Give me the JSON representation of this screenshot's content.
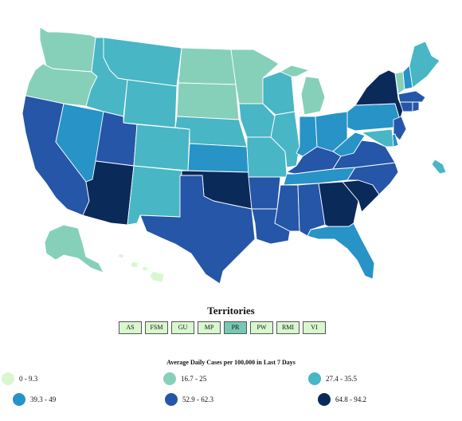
{
  "territories": {
    "title": "Territories",
    "buttons": [
      {
        "code": "AS",
        "selected": false
      },
      {
        "code": "FSM",
        "selected": false
      },
      {
        "code": "GU",
        "selected": false
      },
      {
        "code": "MP",
        "selected": false
      },
      {
        "code": "PR",
        "selected": true
      },
      {
        "code": "PW",
        "selected": false
      },
      {
        "code": "RMI",
        "selected": false
      },
      {
        "code": "VI",
        "selected": false
      }
    ]
  },
  "legend": {
    "title": "Average Daily Cases per 100,000 in Last 7 Days",
    "bins": [
      {
        "label": "0 - 9.3",
        "color": "#d8f7cf"
      },
      {
        "label": "16.7 - 25",
        "color": "#86d0b9"
      },
      {
        "label": "27.4 - 35.5",
        "color": "#48b6c5"
      },
      {
        "label": "39.3 - 49",
        "color": "#2793c6"
      },
      {
        "label": "52.9 - 62.3",
        "color": "#2556a7"
      },
      {
        "label": "64.8 - 94.2",
        "color": "#0a2a5a"
      }
    ]
  },
  "map": {
    "states": [
      {
        "id": "WA",
        "bin": 1
      },
      {
        "id": "OR",
        "bin": 1
      },
      {
        "id": "CA",
        "bin": 4
      },
      {
        "id": "NV",
        "bin": 3
      },
      {
        "id": "ID",
        "bin": 2
      },
      {
        "id": "MT",
        "bin": 2
      },
      {
        "id": "WY",
        "bin": 2
      },
      {
        "id": "UT",
        "bin": 4
      },
      {
        "id": "AZ",
        "bin": 5
      },
      {
        "id": "CO",
        "bin": 2
      },
      {
        "id": "NM",
        "bin": 2
      },
      {
        "id": "ND",
        "bin": 1
      },
      {
        "id": "SD",
        "bin": 1
      },
      {
        "id": "NE",
        "bin": 2
      },
      {
        "id": "KS",
        "bin": 3
      },
      {
        "id": "OK",
        "bin": 5
      },
      {
        "id": "TX",
        "bin": 4
      },
      {
        "id": "MN",
        "bin": 1
      },
      {
        "id": "IA",
        "bin": 2
      },
      {
        "id": "MO",
        "bin": 2
      },
      {
        "id": "AR",
        "bin": 4
      },
      {
        "id": "LA",
        "bin": 4
      },
      {
        "id": "WI",
        "bin": 2
      },
      {
        "id": "IL",
        "bin": 2
      },
      {
        "id": "MI",
        "bin": 1
      },
      {
        "id": "IN",
        "bin": 3
      },
      {
        "id": "OH",
        "bin": 3
      },
      {
        "id": "KY",
        "bin": 4
      },
      {
        "id": "TN",
        "bin": 3
      },
      {
        "id": "MS",
        "bin": 4
      },
      {
        "id": "AL",
        "bin": 4
      },
      {
        "id": "GA",
        "bin": 5
      },
      {
        "id": "FL",
        "bin": 3
      },
      {
        "id": "SC",
        "bin": 5
      },
      {
        "id": "NC",
        "bin": 4
      },
      {
        "id": "VA",
        "bin": 4
      },
      {
        "id": "WV",
        "bin": 3
      },
      {
        "id": "PA",
        "bin": 3
      },
      {
        "id": "NY",
        "bin": 5
      },
      {
        "id": "VT",
        "bin": 1
      },
      {
        "id": "NH",
        "bin": 3
      },
      {
        "id": "ME",
        "bin": 2
      },
      {
        "id": "MA",
        "bin": 4
      },
      {
        "id": "CT",
        "bin": 4
      },
      {
        "id": "RI",
        "bin": 4
      },
      {
        "id": "NJ",
        "bin": 4
      },
      {
        "id": "DE",
        "bin": 3
      },
      {
        "id": "MD",
        "bin": 2
      },
      {
        "id": "AK",
        "bin": 1
      },
      {
        "id": "HI",
        "bin": 0
      },
      {
        "id": "PR",
        "bin": 2
      }
    ]
  }
}
